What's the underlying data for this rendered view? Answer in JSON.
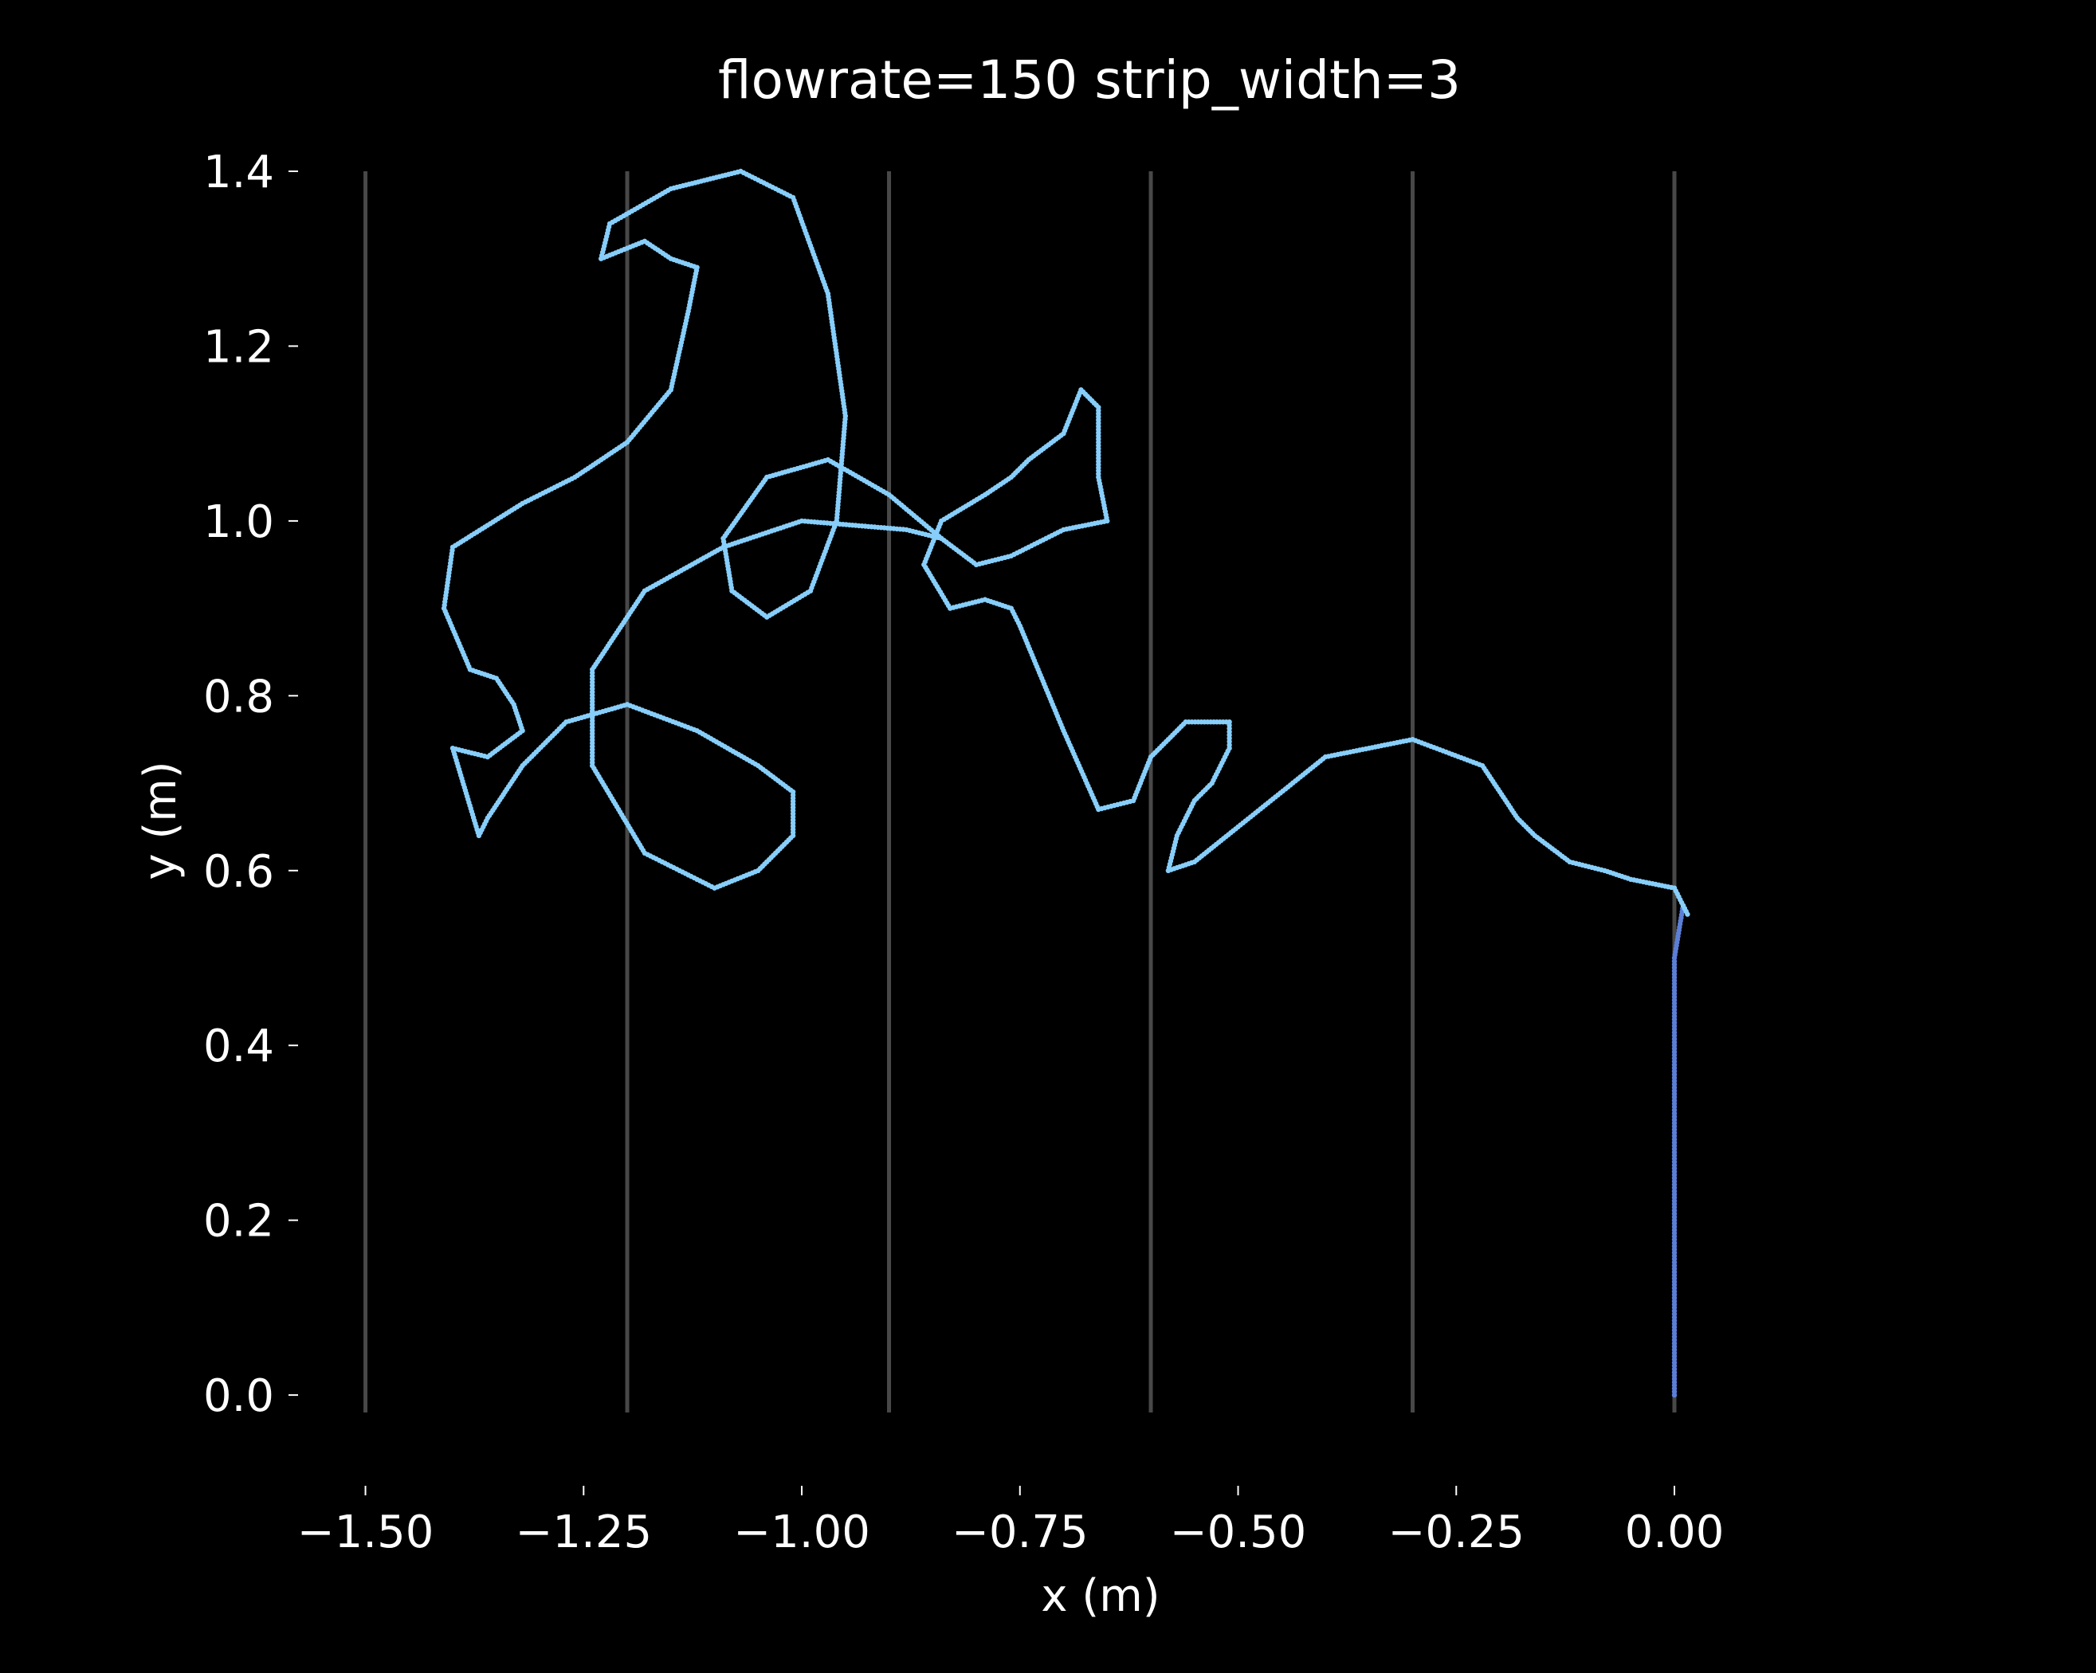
{
  "chart_data": {
    "type": "scatter",
    "title": "flowrate=150 strip_width=3",
    "xlabel": "x (m)",
    "ylabel": "y (m)",
    "xlim": [
      -1.59,
      0.2
    ],
    "ylim": [
      -0.04,
      1.4
    ],
    "grid": false,
    "x_ticks": [
      {
        "value": -1.5,
        "label": "−1.50"
      },
      {
        "value": -1.25,
        "label": "−1.25"
      },
      {
        "value": -1.0,
        "label": "−1.00"
      },
      {
        "value": -0.75,
        "label": "−0.75"
      },
      {
        "value": -0.5,
        "label": "−0.50"
      },
      {
        "value": -0.25,
        "label": "−0.25"
      },
      {
        "value": 0.0,
        "label": "0.00"
      }
    ],
    "y_ticks": [
      {
        "value": 0.0,
        "label": "0.0"
      },
      {
        "value": 0.2,
        "label": "0.2"
      },
      {
        "value": 0.4,
        "label": "0.4"
      },
      {
        "value": 0.6,
        "label": "0.6"
      },
      {
        "value": 0.8,
        "label": "0.8"
      },
      {
        "value": 1.0,
        "label": "1.0"
      },
      {
        "value": 1.2,
        "label": "1.2"
      },
      {
        "value": 1.4,
        "label": "1.4"
      }
    ],
    "strip_lines_x": [
      -1.5,
      -1.2,
      -0.9,
      -0.6,
      -0.3,
      0.0
    ],
    "colors": {
      "background": "#000000",
      "trajectory": "#87cefa",
      "start_segment": "#5b7fd6",
      "strip_line": "#555555",
      "text": "#ffffff"
    },
    "series": [
      {
        "values": [
          [
            0.0,
            0.0
          ],
          [
            0.0,
            0.1
          ],
          [
            0.0,
            0.2
          ],
          [
            0.0,
            0.3
          ],
          [
            0.0,
            0.4
          ],
          [
            0.0,
            0.5
          ],
          [
            0.01,
            0.56
          ],
          [
            0.015,
            0.55
          ],
          [
            0.0,
            0.58
          ],
          [
            -0.05,
            0.59
          ],
          [
            -0.08,
            0.6
          ],
          [
            -0.12,
            0.61
          ],
          [
            -0.16,
            0.64
          ],
          [
            -0.18,
            0.66
          ],
          [
            -0.22,
            0.72
          ],
          [
            -0.3,
            0.75
          ],
          [
            -0.4,
            0.73
          ],
          [
            -0.5,
            0.65
          ],
          [
            -0.55,
            0.61
          ],
          [
            -0.58,
            0.6
          ],
          [
            -0.57,
            0.64
          ],
          [
            -0.55,
            0.68
          ],
          [
            -0.53,
            0.7
          ],
          [
            -0.51,
            0.74
          ],
          [
            -0.51,
            0.77
          ],
          [
            -0.56,
            0.77
          ],
          [
            -0.6,
            0.73
          ],
          [
            -0.62,
            0.68
          ],
          [
            -0.66,
            0.67
          ],
          [
            -0.7,
            0.76
          ],
          [
            -0.75,
            0.88
          ],
          [
            -0.76,
            0.9
          ],
          [
            -0.79,
            0.91
          ],
          [
            -0.83,
            0.9
          ],
          [
            -0.86,
            0.95
          ],
          [
            -0.84,
            1.0
          ],
          [
            -0.79,
            1.03
          ],
          [
            -0.76,
            1.05
          ],
          [
            -0.74,
            1.07
          ],
          [
            -0.7,
            1.1
          ],
          [
            -0.68,
            1.15
          ],
          [
            -0.66,
            1.13
          ],
          [
            -0.66,
            1.05
          ],
          [
            -0.65,
            1.0
          ],
          [
            -0.7,
            0.99
          ],
          [
            -0.76,
            0.96
          ],
          [
            -0.8,
            0.95
          ],
          [
            -0.84,
            0.98
          ],
          [
            -0.9,
            1.03
          ],
          [
            -0.97,
            1.07
          ],
          [
            -1.04,
            1.05
          ],
          [
            -1.09,
            0.98
          ],
          [
            -1.08,
            0.92
          ],
          [
            -1.04,
            0.89
          ],
          [
            -0.99,
            0.92
          ],
          [
            -0.96,
            1.0
          ],
          [
            -0.95,
            1.12
          ],
          [
            -0.97,
            1.26
          ],
          [
            -1.01,
            1.37
          ],
          [
            -1.07,
            1.4
          ],
          [
            -1.15,
            1.38
          ],
          [
            -1.22,
            1.34
          ],
          [
            -1.23,
            1.3
          ],
          [
            -1.18,
            1.32
          ],
          [
            -1.15,
            1.3
          ],
          [
            -1.12,
            1.29
          ],
          [
            -1.13,
            1.24
          ],
          [
            -1.15,
            1.15
          ],
          [
            -1.2,
            1.09
          ],
          [
            -1.26,
            1.05
          ],
          [
            -1.32,
            1.02
          ],
          [
            -1.4,
            0.97
          ],
          [
            -1.41,
            0.9
          ],
          [
            -1.38,
            0.83
          ],
          [
            -1.35,
            0.82
          ],
          [
            -1.33,
            0.79
          ],
          [
            -1.32,
            0.76
          ],
          [
            -1.36,
            0.73
          ],
          [
            -1.4,
            0.74
          ],
          [
            -1.37,
            0.64
          ],
          [
            -1.36,
            0.66
          ],
          [
            -1.32,
            0.72
          ],
          [
            -1.27,
            0.77
          ],
          [
            -1.2,
            0.79
          ],
          [
            -1.12,
            0.76
          ],
          [
            -1.05,
            0.72
          ],
          [
            -1.01,
            0.69
          ],
          [
            -1.01,
            0.64
          ],
          [
            -1.05,
            0.6
          ],
          [
            -1.1,
            0.58
          ],
          [
            -1.18,
            0.62
          ],
          [
            -1.24,
            0.72
          ],
          [
            -1.24,
            0.83
          ],
          [
            -1.18,
            0.92
          ],
          [
            -1.09,
            0.97
          ],
          [
            -1.0,
            1.0
          ],
          [
            -0.88,
            0.99
          ],
          [
            -0.84,
            0.98
          ]
        ]
      }
    ]
  }
}
